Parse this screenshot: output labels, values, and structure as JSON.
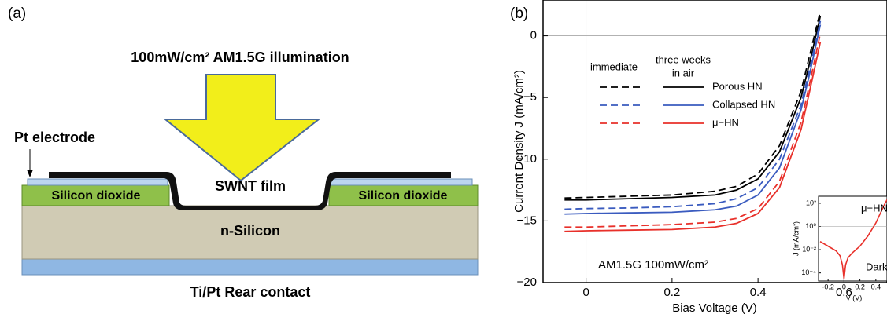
{
  "panel_a": {
    "label": "(a)",
    "illumination": "100mW/cm² AM1.5G illumination",
    "pt_electrode": "Pt electrode",
    "swnt_film": "SWNT film",
    "oxide_left": "Silicon dioxide",
    "oxide_right": "Silicon dioxide",
    "silicon": "n-Silicon",
    "rear_contact": "Ti/Pt Rear contact"
  },
  "chart_data": {
    "type": "line",
    "panel_label": "(b)",
    "x_label": "Bias Voltage (V)",
    "y_label": "Current Density J (mA/cm²)",
    "annotation": "AM1.5G 100mW/cm²",
    "legend_headers": {
      "dashed": "immediate",
      "solid": [
        "three weeks",
        "in air"
      ]
    },
    "xlim": [
      -0.1,
      0.7
    ],
    "xticks": [
      0,
      0.2,
      0.4,
      0.6
    ],
    "ylim": [
      -20,
      2.9
    ],
    "yticks": [
      {
        "value": -20,
        "label": "−20"
      },
      {
        "value": -15,
        "label": "−15"
      },
      {
        "value": -10,
        "label": "−10"
      },
      {
        "value": -5,
        "label": "−5"
      },
      0
    ],
    "zero_lines": true,
    "x": [
      -0.05,
      0,
      0.1,
      0.2,
      0.3,
      0.35,
      0.4,
      0.45,
      0.5,
      0.52,
      0.545
    ],
    "series": [
      {
        "name": "Porous HN",
        "color": "#000000",
        "values_immediate": [
          -13.15,
          -13.1,
          -13.0,
          -12.9,
          -12.6,
          -12.2,
          -11.2,
          -8.9,
          -4.5,
          -1.6,
          2.0
        ],
        "values_three_weeks": [
          -13.3,
          -13.3,
          -13.2,
          -13.1,
          -12.9,
          -12.5,
          -11.6,
          -9.4,
          -5.0,
          -2.2,
          1.6
        ]
      },
      {
        "name": "Collapsed HN",
        "color": "#3a5bbf",
        "values_immediate": [
          -14.05,
          -14.0,
          -13.95,
          -13.85,
          -13.6,
          -13.2,
          -12.3,
          -10.0,
          -5.6,
          -2.7,
          1.2
        ],
        "values_three_weeks": [
          -14.45,
          -14.4,
          -14.35,
          -14.3,
          -14.1,
          -13.8,
          -12.9,
          -10.7,
          -6.0,
          -3.1,
          0.9
        ]
      },
      {
        "name": "μ−HN",
        "color": "#e8302a",
        "values_immediate": [
          -15.5,
          -15.5,
          -15.4,
          -15.3,
          -15.1,
          -14.8,
          -14.0,
          -11.8,
          -7.0,
          -3.9,
          0.2
        ],
        "values_three_weeks": [
          -15.85,
          -15.8,
          -15.75,
          -15.7,
          -15.5,
          -15.2,
          -14.4,
          -12.3,
          -7.6,
          -4.5,
          -0.5
        ]
      }
    ],
    "inset": {
      "type": "line",
      "log_y": true,
      "title": "μ−HN",
      "annotation": "Dark",
      "x_label": "V (V)",
      "y_label": "J (mA/cm²)",
      "color": "#e8302a",
      "xlim": [
        -0.32,
        0.54
      ],
      "xticks": [
        -0.2,
        0,
        0.2,
        0.4
      ],
      "ylim": [
        2e-05,
        400
      ],
      "yticks": [
        {
          "value": 0.0001,
          "label": "10⁻⁴"
        },
        {
          "value": 0.01,
          "label": "10⁻²"
        },
        {
          "value": 1,
          "label": "10⁰"
        },
        {
          "value": 100,
          "label": "10²"
        }
      ],
      "x": [
        -0.3,
        -0.2,
        -0.1,
        -0.05,
        -0.02,
        0,
        0.02,
        0.05,
        0.1,
        0.2,
        0.3,
        0.4,
        0.5,
        0.54
      ],
      "values": [
        0.05,
        0.02,
        0.008,
        0.003,
        0.0005,
        3e-05,
        0.0005,
        0.002,
        0.005,
        0.02,
        0.15,
        2,
        60,
        200
      ]
    }
  }
}
